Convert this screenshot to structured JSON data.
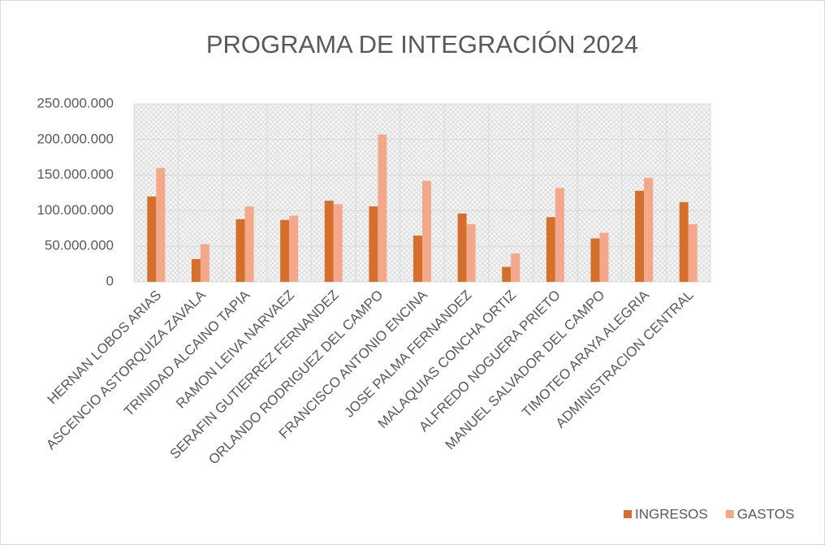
{
  "chart_data": {
    "type": "bar",
    "title": "PROGRAMA DE INTEGRACIÓN 2024",
    "categories": [
      "HERNAN LOBOS ARIAS",
      "ASCENCIO ASTORQUIZA ZAVALA",
      "TRINIDAD ALCAINO TAPIA",
      "RAMON LEIVA NARVAEZ",
      "SERAFIN GUTIERREZ FERNANDEZ",
      "ORLANDO RODRIGUEZ DEL CAMPO",
      "FRANCISCO ANTONIO ENCINA",
      "JOSE PALMA FERNANDEZ",
      "MALAQUIAS CONCHA ORTIZ",
      "ALFREDO NOGUERA PRIETO",
      "MANUEL SALVADOR DEL CAMPO",
      "TIMOTEO ARAYA ALEGRIA",
      "ADMINISTRACION CENTRAL"
    ],
    "series": [
      {
        "name": "INGRESOS",
        "color": "#d4702c",
        "values": [
          120000000,
          32000000,
          88000000,
          87000000,
          114000000,
          106000000,
          65000000,
          96000000,
          21000000,
          91000000,
          61000000,
          128000000,
          112000000
        ]
      },
      {
        "name": "GASTOS",
        "color": "#f4a88a",
        "values": [
          160000000,
          53000000,
          106000000,
          93000000,
          109000000,
          207000000,
          142000000,
          81000000,
          40000000,
          132000000,
          69000000,
          146000000,
          81000000
        ]
      }
    ],
    "ylim": [
      0,
      250000000
    ],
    "yticks": [
      0,
      {
        "value": 50000000,
        "label": "50.000.000"
      },
      {
        "value": 100000000,
        "label": "100.000.000"
      },
      {
        "value": 150000000,
        "label": "150.000.000"
      },
      {
        "value": 200000000,
        "label": "200.000.000"
      },
      {
        "value": 250000000,
        "label": "250.000.000"
      }
    ],
    "grid": true,
    "legend": "bottom-right"
  }
}
